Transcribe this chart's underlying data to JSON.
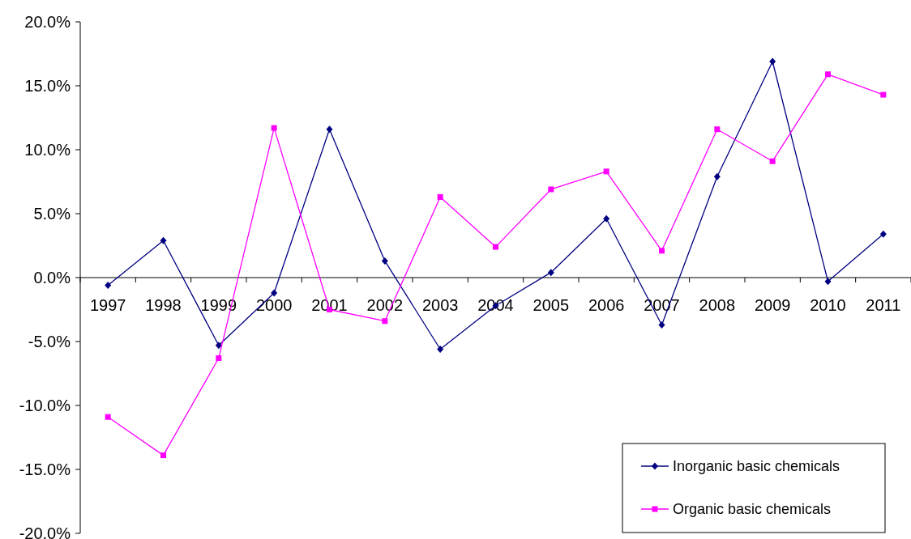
{
  "chart_data": {
    "type": "line",
    "categories": [
      "1997",
      "1998",
      "1999",
      "2000",
      "2001",
      "2002",
      "2003",
      "2004",
      "2005",
      "2006",
      "2007",
      "2008",
      "2009",
      "2010",
      "2011"
    ],
    "series": [
      {
        "name": "Inorganic basic chemicals",
        "color": "#000080",
        "marker": "diamond",
        "values": [
          -0.6,
          2.9,
          -5.3,
          -1.2,
          11.6,
          1.3,
          -5.6,
          -2.2,
          0.4,
          4.6,
          -3.7,
          7.9,
          16.9,
          -0.3,
          3.4
        ]
      },
      {
        "name": "Organic basic chemicals",
        "color": "#ff00ff",
        "marker": "square",
        "values": [
          -10.9,
          -13.9,
          -6.3,
          11.7,
          -2.5,
          -3.4,
          6.3,
          2.4,
          6.9,
          8.3,
          2.1,
          11.6,
          9.1,
          15.9,
          14.3
        ]
      }
    ],
    "ylim": [
      -20,
      20
    ],
    "yticks": [
      {
        "value": -20,
        "label": "-20.0%"
      },
      {
        "value": -15,
        "label": "-15.0%"
      },
      {
        "value": -10,
        "label": "-10.0%"
      },
      {
        "value": -5,
        "label": "-5.0%"
      },
      {
        "value": 0,
        "label": "0.0%"
      },
      {
        "value": 5,
        "label": "5.0%"
      },
      {
        "value": 10,
        "label": "10.0%"
      },
      {
        "value": 15,
        "label": "15.0%"
      },
      {
        "value": 20,
        "label": "20.0%"
      }
    ],
    "grid": false,
    "legend": "bottom right",
    "line_style": "solid"
  }
}
